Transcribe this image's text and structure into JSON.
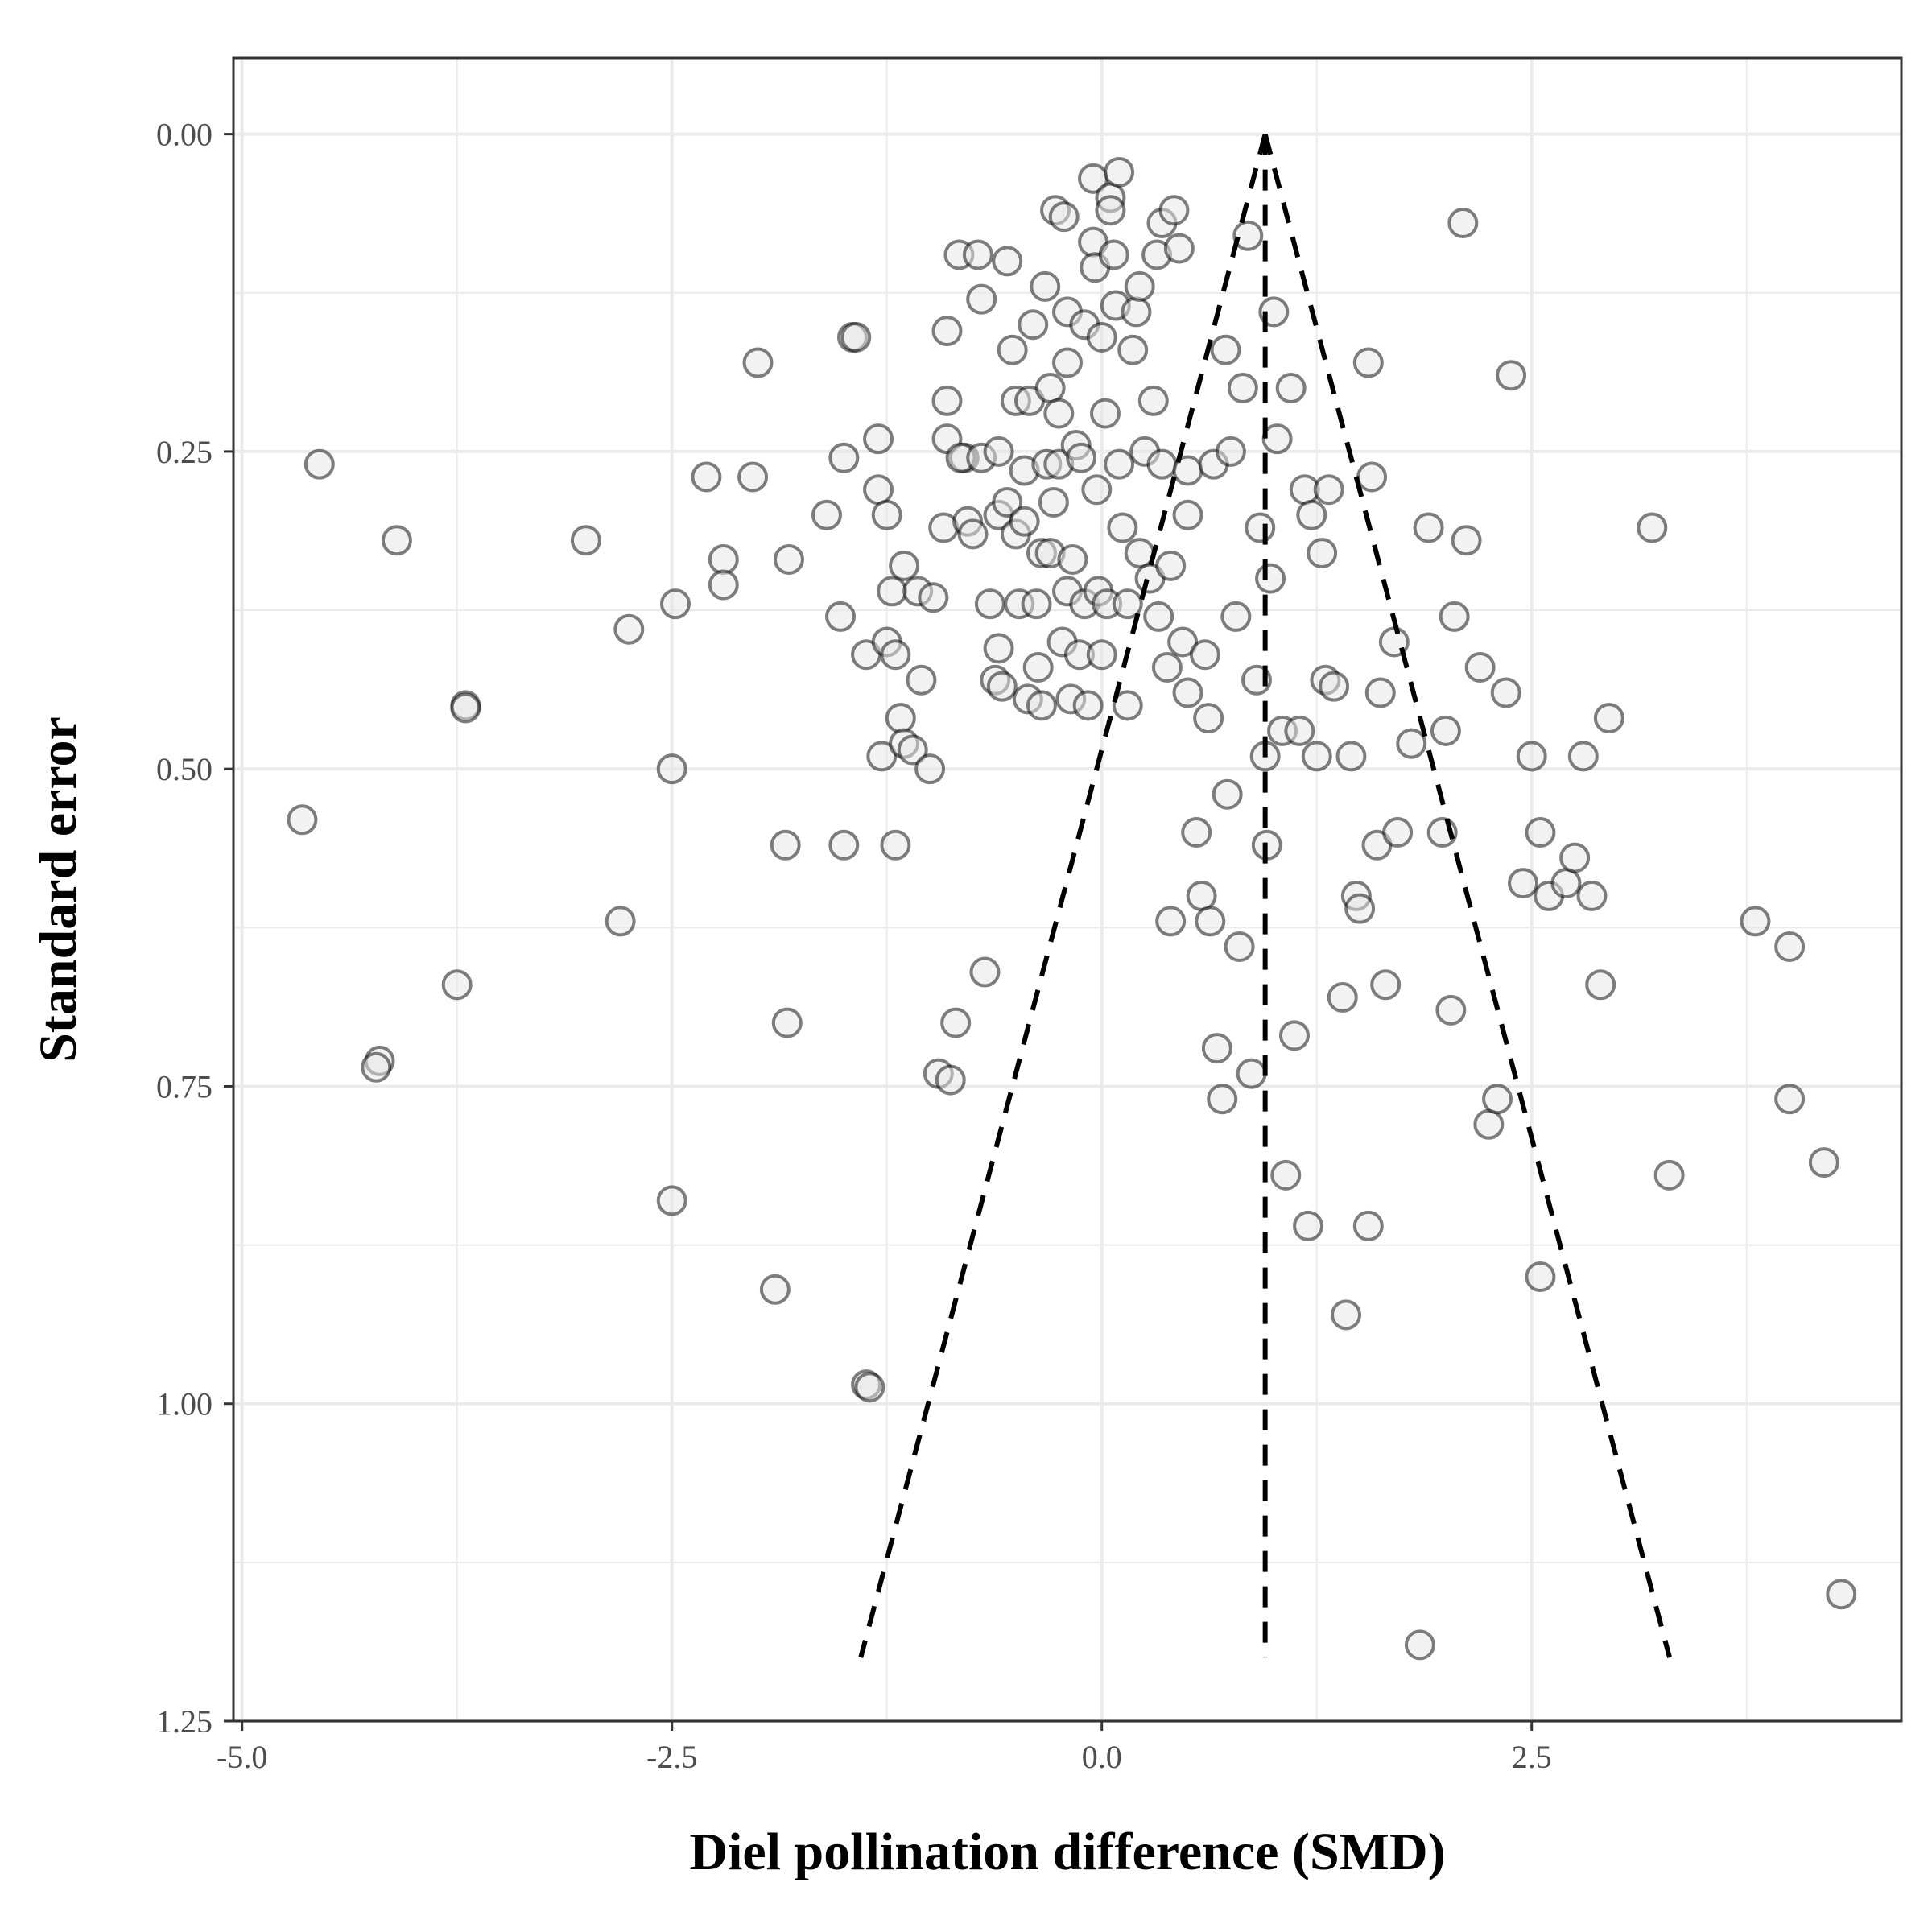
{
  "chart_data": {
    "type": "scatter",
    "title": "",
    "xlabel": "Diel pollination difference (SMD)",
    "ylabel": "Standard error",
    "xlim": [
      -5.05,
      4.65
    ],
    "ylim": [
      -0.06,
      1.25
    ],
    "y_reversed": true,
    "x_ticks": [
      -5.0,
      -2.5,
      0.0,
      2.5
    ],
    "x_tick_labels": [
      "-5.0",
      "-2.5",
      "0.0",
      "2.5"
    ],
    "y_ticks": [
      0.0,
      0.25,
      0.5,
      0.75,
      1.0,
      1.25
    ],
    "y_tick_labels": [
      "0.00",
      "0.25",
      "0.50",
      "0.75",
      "1.00",
      "1.25"
    ],
    "grid": true,
    "legend": "none",
    "funnel": {
      "center": 0.95,
      "apex_se": 0.0,
      "max_se": 1.2,
      "z": 1.96,
      "line_style": "dashed"
    },
    "marker": {
      "shape": "open-circle",
      "edge_color": "#000000",
      "fill_color": "#e6e6e6",
      "alpha": 0.5
    },
    "points": [
      [
        -4.55,
        0.26
      ],
      [
        -4.65,
        0.54
      ],
      [
        -4.1,
        0.32
      ],
      [
        -4.2,
        0.73
      ],
      [
        -4.22,
        0.735
      ],
      [
        -3.75,
        0.67
      ],
      [
        -3.7,
        0.45
      ],
      [
        -3.7,
        0.452
      ],
      [
        -3.0,
        0.32
      ],
      [
        -2.8,
        0.62
      ],
      [
        -2.75,
        0.39
      ],
      [
        -2.5,
        0.5
      ],
      [
        -2.5,
        0.84
      ],
      [
        -2.48,
        0.37
      ],
      [
        -2.3,
        0.27
      ],
      [
        -2.2,
        0.335
      ],
      [
        -2.2,
        0.355
      ],
      [
        -2.0,
        0.18
      ],
      [
        -2.03,
        0.27
      ],
      [
        -1.9,
        0.91
      ],
      [
        -1.82,
        0.335
      ],
      [
        -1.84,
        0.56
      ],
      [
        -1.83,
        0.7
      ],
      [
        -1.6,
        0.3
      ],
      [
        -1.52,
        0.38
      ],
      [
        -1.5,
        0.255
      ],
      [
        -1.5,
        0.56
      ],
      [
        -1.45,
        0.16
      ],
      [
        -1.43,
        0.16
      ],
      [
        -1.37,
        0.41
      ],
      [
        -1.37,
        0.985
      ],
      [
        -1.35,
        0.987
      ],
      [
        -1.3,
        0.24
      ],
      [
        -1.3,
        0.28
      ],
      [
        -1.28,
        0.49
      ],
      [
        -1.25,
        0.3
      ],
      [
        -1.22,
        0.36
      ],
      [
        -1.25,
        0.4
      ],
      [
        -1.2,
        0.56
      ],
      [
        -1.2,
        0.41
      ],
      [
        -1.17,
        0.46
      ],
      [
        -1.15,
        0.48
      ],
      [
        -1.15,
        0.34
      ],
      [
        -1.1,
        0.485
      ],
      [
        -1.07,
        0.36
      ],
      [
        -1.05,
        0.43
      ],
      [
        -1.0,
        0.5
      ],
      [
        -0.98,
        0.365
      ],
      [
        -0.95,
        0.74
      ],
      [
        -0.92,
        0.31
      ],
      [
        -0.9,
        0.24
      ],
      [
        -0.9,
        0.21
      ],
      [
        -0.9,
        0.155
      ],
      [
        -0.88,
        0.745
      ],
      [
        -0.85,
        0.7
      ],
      [
        -0.83,
        0.095
      ],
      [
        -0.8,
        0.255
      ],
      [
        -0.82,
        0.255
      ],
      [
        -0.78,
        0.305
      ],
      [
        -0.75,
        0.315
      ],
      [
        -0.72,
        0.095
      ],
      [
        -0.7,
        0.13
      ],
      [
        -0.7,
        0.255
      ],
      [
        -0.68,
        0.66
      ],
      [
        -0.65,
        0.37
      ],
      [
        -0.62,
        0.43
      ],
      [
        -0.6,
        0.25
      ],
      [
        -0.6,
        0.3
      ],
      [
        -0.6,
        0.405
      ],
      [
        -0.58,
        0.435
      ],
      [
        -0.55,
        0.29
      ],
      [
        -0.55,
        0.1
      ],
      [
        -0.52,
        0.17
      ],
      [
        -0.5,
        0.21
      ],
      [
        -0.5,
        0.315
      ],
      [
        -0.48,
        0.37
      ],
      [
        -0.45,
        0.265
      ],
      [
        -0.45,
        0.305
      ],
      [
        -0.43,
        0.445
      ],
      [
        -0.42,
        0.21
      ],
      [
        -0.4,
        0.15
      ],
      [
        -0.38,
        0.37
      ],
      [
        -0.37,
        0.42
      ],
      [
        -0.35,
        0.33
      ],
      [
        -0.35,
        0.45
      ],
      [
        -0.33,
        0.12
      ],
      [
        -0.32,
        0.26
      ],
      [
        -0.3,
        0.2
      ],
      [
        -0.3,
        0.33
      ],
      [
        -0.28,
        0.29
      ],
      [
        -0.27,
        0.06
      ],
      [
        -0.25,
        0.22
      ],
      [
        -0.25,
        0.26
      ],
      [
        -0.23,
        0.4
      ],
      [
        -0.22,
        0.065
      ],
      [
        -0.2,
        0.18
      ],
      [
        -0.2,
        0.14
      ],
      [
        -0.2,
        0.36
      ],
      [
        -0.18,
        0.445
      ],
      [
        -0.17,
        0.335
      ],
      [
        -0.15,
        0.245
      ],
      [
        -0.13,
        0.41
      ],
      [
        -0.12,
        0.255
      ],
      [
        -0.1,
        0.15
      ],
      [
        -0.1,
        0.37
      ],
      [
        -0.08,
        0.45
      ],
      [
        -0.05,
        0.035
      ],
      [
        -0.05,
        0.085
      ],
      [
        -0.04,
        0.105
      ],
      [
        -0.03,
        0.28
      ],
      [
        -0.02,
        0.36
      ],
      [
        0.0,
        0.41
      ],
      [
        0.0,
        0.16
      ],
      [
        0.02,
        0.22
      ],
      [
        0.03,
        0.37
      ],
      [
        0.05,
        0.05
      ],
      [
        0.05,
        0.06
      ],
      [
        0.07,
        0.095
      ],
      [
        0.08,
        0.135
      ],
      [
        0.1,
        0.03
      ],
      [
        0.1,
        0.26
      ],
      [
        0.12,
        0.31
      ],
      [
        0.15,
        0.37
      ],
      [
        0.15,
        0.45
      ],
      [
        0.18,
        0.17
      ],
      [
        0.2,
        0.14
      ],
      [
        0.22,
        0.12
      ],
      [
        0.22,
        0.33
      ],
      [
        0.25,
        0.25
      ],
      [
        0.28,
        0.35
      ],
      [
        0.3,
        0.21
      ],
      [
        0.32,
        0.095
      ],
      [
        0.33,
        0.38
      ],
      [
        0.35,
        0.07
      ],
      [
        0.35,
        0.26
      ],
      [
        0.38,
        0.42
      ],
      [
        0.4,
        0.34
      ],
      [
        0.4,
        0.62
      ],
      [
        0.42,
        0.06
      ],
      [
        0.45,
        0.09
      ],
      [
        0.47,
        0.4
      ],
      [
        0.5,
        0.3
      ],
      [
        0.5,
        0.44
      ],
      [
        0.5,
        0.265
      ],
      [
        0.55,
        0.55
      ],
      [
        0.58,
        0.6
      ],
      [
        0.6,
        0.41
      ],
      [
        0.62,
        0.46
      ],
      [
        0.63,
        0.62
      ],
      [
        0.65,
        0.26
      ],
      [
        0.67,
        0.72
      ],
      [
        0.7,
        0.76
      ],
      [
        0.72,
        0.17
      ],
      [
        0.73,
        0.52
      ],
      [
        0.75,
        0.25
      ],
      [
        0.78,
        0.38
      ],
      [
        0.8,
        0.64
      ],
      [
        0.82,
        0.2
      ],
      [
        0.85,
        0.08
      ],
      [
        0.87,
        0.74
      ],
      [
        0.9,
        0.43
      ],
      [
        0.92,
        0.31
      ],
      [
        0.95,
        0.49
      ],
      [
        0.96,
        0.56
      ],
      [
        0.98,
        0.35
      ],
      [
        1.0,
        0.14
      ],
      [
        1.02,
        0.24
      ],
      [
        1.05,
        0.47
      ],
      [
        1.07,
        0.82
      ],
      [
        1.1,
        0.2
      ],
      [
        1.12,
        0.71
      ],
      [
        1.15,
        0.47
      ],
      [
        1.18,
        0.28
      ],
      [
        1.2,
        0.86
      ],
      [
        1.22,
        0.3
      ],
      [
        1.25,
        0.49
      ],
      [
        1.28,
        0.33
      ],
      [
        1.3,
        0.43
      ],
      [
        1.32,
        0.28
      ],
      [
        1.35,
        0.435
      ],
      [
        1.4,
        0.68
      ],
      [
        1.42,
        0.93
      ],
      [
        1.45,
        0.49
      ],
      [
        1.48,
        0.6
      ],
      [
        1.5,
        0.61
      ],
      [
        1.55,
        0.18
      ],
      [
        1.57,
        0.27
      ],
      [
        1.6,
        0.56
      ],
      [
        1.62,
        0.44
      ],
      [
        1.65,
        0.67
      ],
      [
        1.7,
        0.4
      ],
      [
        1.72,
        0.55
      ],
      [
        1.8,
        0.48
      ],
      [
        1.9,
        0.31
      ],
      [
        1.98,
        0.55
      ],
      [
        2.0,
        0.47
      ],
      [
        2.03,
        0.69
      ],
      [
        2.05,
        0.38
      ],
      [
        2.1,
        0.07
      ],
      [
        2.12,
        0.32
      ],
      [
        2.2,
        0.42
      ],
      [
        2.25,
        0.78
      ],
      [
        2.3,
        0.76
      ],
      [
        2.35,
        0.44
      ],
      [
        2.38,
        0.19
      ],
      [
        2.45,
        0.59
      ],
      [
        2.5,
        0.49
      ],
      [
        2.55,
        0.55
      ],
      [
        2.6,
        0.6
      ],
      [
        2.7,
        0.59
      ],
      [
        2.75,
        0.57
      ],
      [
        2.8,
        0.49
      ],
      [
        2.85,
        0.6
      ],
      [
        2.9,
        0.67
      ],
      [
        2.95,
        0.46
      ],
      [
        3.2,
        0.31
      ],
      [
        3.3,
        0.82
      ],
      [
        3.8,
        0.62
      ],
      [
        4.0,
        0.64
      ],
      [
        4.0,
        0.76
      ],
      [
        4.2,
        0.81
      ],
      [
        4.3,
        1.15
      ],
      [
        1.85,
        1.19
      ],
      [
        2.55,
        0.9
      ],
      [
        1.55,
        0.86
      ]
    ]
  }
}
